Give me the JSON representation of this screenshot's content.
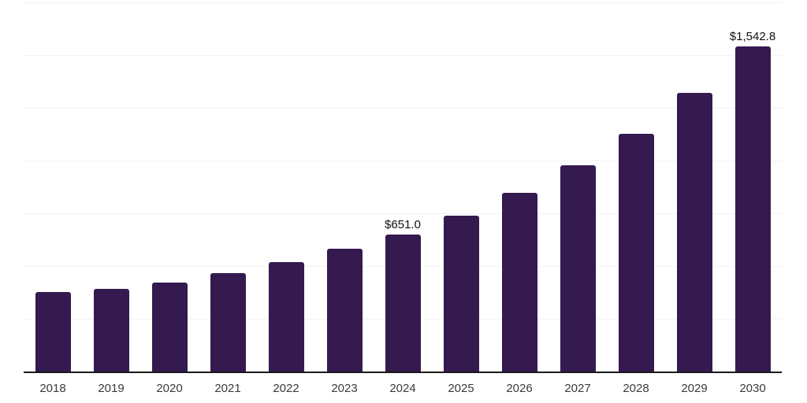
{
  "chart_data": {
    "type": "bar",
    "title": "",
    "xlabel": "",
    "ylabel": "",
    "categories": [
      "2018",
      "2019",
      "2020",
      "2021",
      "2022",
      "2023",
      "2024",
      "2025",
      "2026",
      "2027",
      "2028",
      "2029",
      "2030"
    ],
    "values": [
      377,
      392,
      422,
      466,
      518,
      581,
      651.0,
      740,
      847,
      977,
      1128,
      1321,
      1542.8
    ],
    "data_labels": [
      "",
      "",
      "",
      "",
      "",
      "",
      "$651.0",
      "",
      "",
      "",
      "",
      "",
      "$1,542.8"
    ],
    "ylim": [
      0,
      1750
    ],
    "gridline_step": 250,
    "grid": "horizontal-only",
    "y_tick_labels_visible": false,
    "legend_position": "none",
    "colors": {
      "bar": "#341A4F",
      "gridline": "#F2F2F2",
      "axis_line": "#1A1A1A",
      "tick_label": "#3A3A3A",
      "data_label": "#111111",
      "background": "#FFFFFF"
    }
  }
}
